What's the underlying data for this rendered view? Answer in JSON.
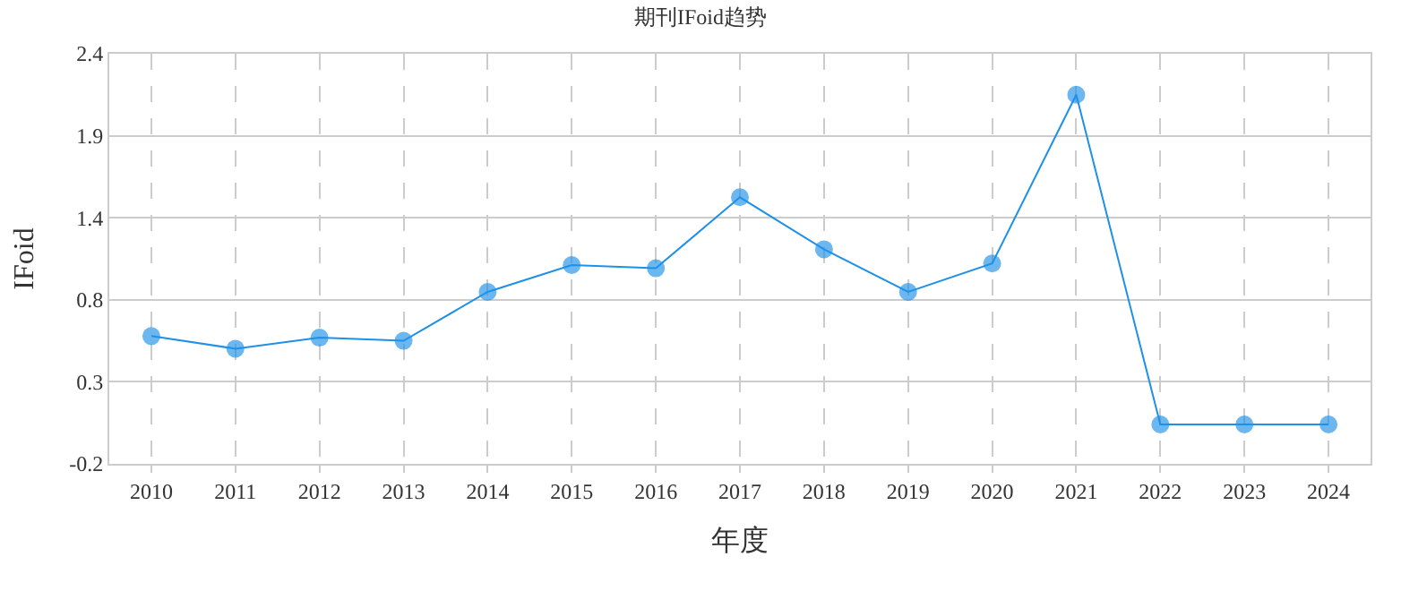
{
  "chart_data": {
    "type": "line",
    "title": "期刊IFoid趋势",
    "xlabel": "年度",
    "ylabel": "IFoid",
    "categories": [
      "2010",
      "2011",
      "2012",
      "2013",
      "2014",
      "2015",
      "2016",
      "2017",
      "2018",
      "2019",
      "2020",
      "2021",
      "2022",
      "2023",
      "2024"
    ],
    "series": [
      {
        "color": "#1e90e8",
        "values": [
          0.61,
          0.53,
          0.6,
          0.58,
          0.89,
          1.06,
          1.04,
          1.49,
          1.16,
          0.89,
          1.07,
          2.14,
          0.05,
          0.05,
          0.05
        ]
      }
    ],
    "ylim": [
      -0.2,
      2.4
    ],
    "yticks": [
      -0.2,
      {
        "value": 0.32,
        "label": "0.3"
      },
      {
        "value": 0.84,
        "label": "0.8"
      },
      {
        "value": 1.36,
        "label": "1.4"
      },
      {
        "value": 1.88,
        "label": "1.9"
      },
      2.4
    ],
    "grid": true,
    "marker": "circle",
    "line_style": "solid",
    "legend": false
  }
}
